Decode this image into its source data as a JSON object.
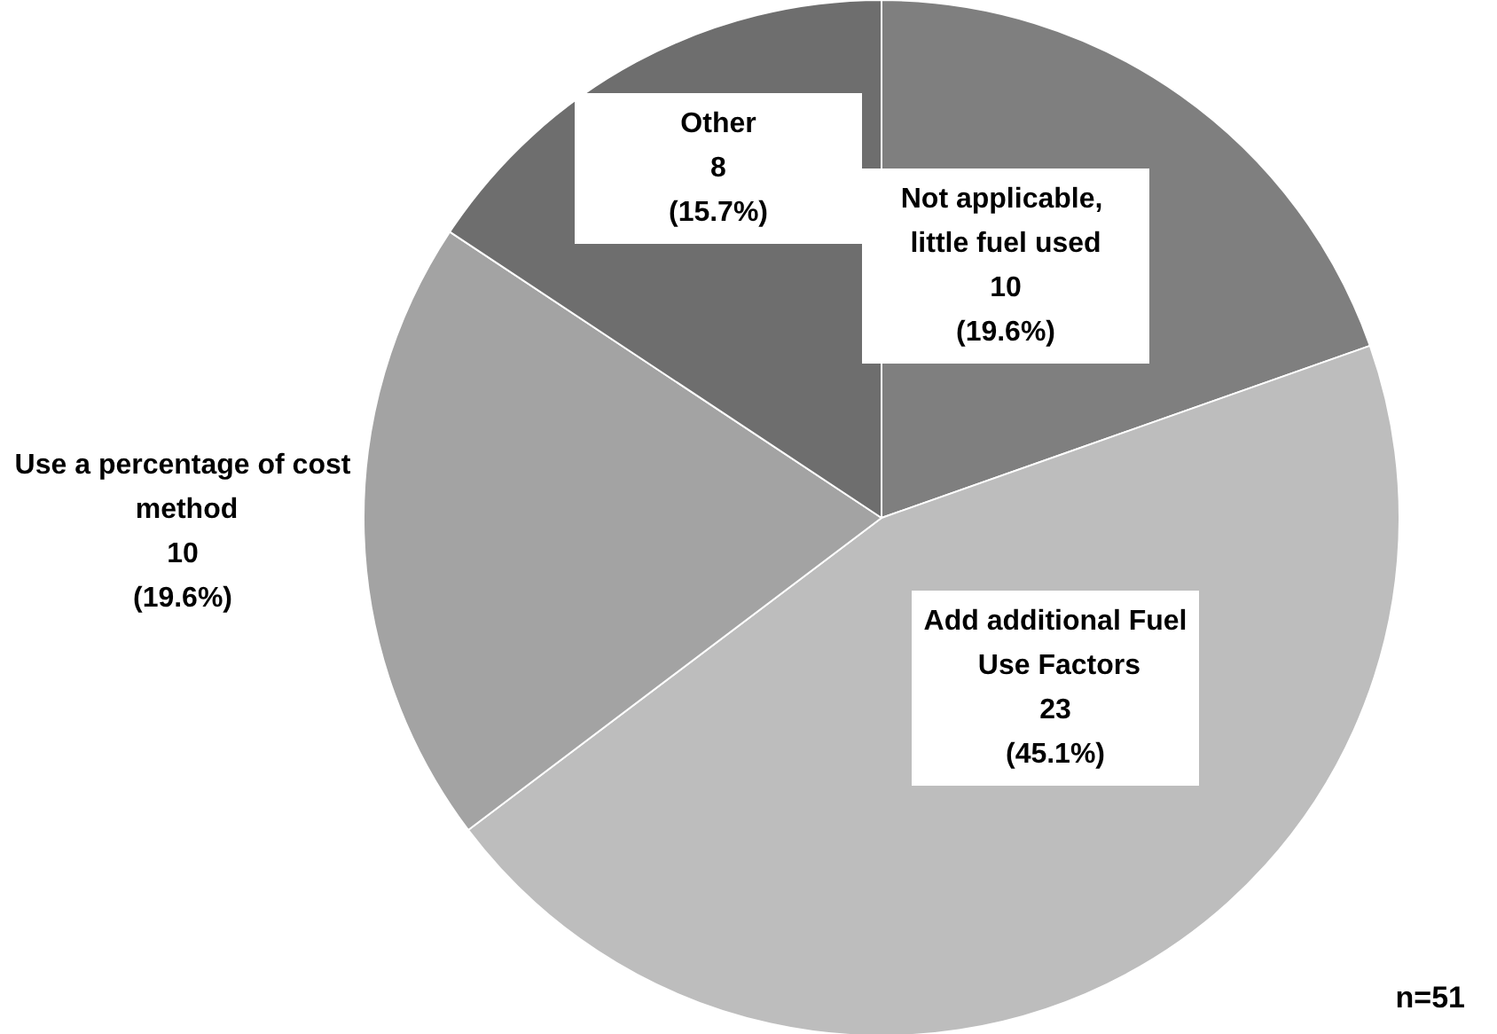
{
  "chart_data": {
    "type": "pie",
    "categories": [
      "Not applicable, little fuel used",
      "Add additional Fuel Use Factors",
      "Use a percentage of cost method",
      "Other"
    ],
    "values": [
      10,
      23,
      10,
      8
    ],
    "colors": [
      "#7f7f7f",
      "#bdbdbd",
      "#a3a3a3",
      "#6e6e6e"
    ],
    "value_labels": [
      "10\n(19.6%)",
      "23\n(45.1%)",
      "10\n(19.6%)",
      "8\n(15.7%)"
    ],
    "annotations": [
      "n=51"
    ]
  }
}
